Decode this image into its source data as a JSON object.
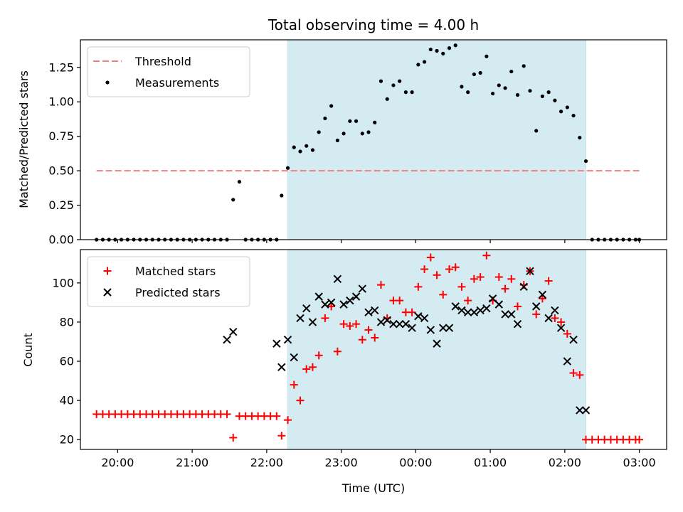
{
  "chart_data": [
    {
      "type": "scatter",
      "title": "Total observing time = 4.00 h",
      "xlabel": "",
      "ylabel": "Matched/Predicted stars",
      "ylim": [
        0,
        1.45
      ],
      "yticks": [
        "0.00",
        "0.25",
        "0.50",
        "0.75",
        "1.00",
        "1.25"
      ],
      "xlim": [
        "19:30",
        "03:22"
      ],
      "xticks": [
        "20:00",
        "21:00",
        "22:00",
        "23:00",
        "00:00",
        "01:00",
        "02:00",
        "03:00"
      ],
      "grid": false,
      "legend_position": "top-left",
      "observing_window": {
        "start": "22:17",
        "end": "02:17"
      },
      "observing_window_color": "#add8e6",
      "threshold": {
        "name": "Threshold",
        "value": 0.5,
        "x_start": "19:43",
        "x_end": "03:00",
        "color": "#f08080",
        "style": "dashed"
      },
      "series": [
        {
          "name": "Measurements",
          "marker": "dot",
          "color": "#000000",
          "x": [
            "19:43",
            "19:48",
            "19:53",
            "19:58",
            "20:03",
            "20:08",
            "20:13",
            "20:18",
            "20:23",
            "20:28",
            "20:33",
            "20:38",
            "20:43",
            "20:48",
            "20:53",
            "20:58",
            "21:03",
            "21:08",
            "21:13",
            "21:18",
            "21:23",
            "21:28",
            "21:33",
            "21:38",
            "21:43",
            "21:48",
            "21:53",
            "21:58",
            "22:03",
            "22:08",
            "22:12",
            "22:17",
            "22:22",
            "22:27",
            "22:32",
            "22:37",
            "22:42",
            "22:47",
            "22:52",
            "22:57",
            "23:02",
            "23:07",
            "23:12",
            "23:17",
            "23:22",
            "23:27",
            "23:32",
            "23:37",
            "23:42",
            "23:47",
            "23:52",
            "23:57",
            "00:02",
            "00:07",
            "00:12",
            "00:17",
            "00:22",
            "00:27",
            "00:32",
            "00:37",
            "00:42",
            "00:47",
            "00:52",
            "00:57",
            "01:02",
            "01:07",
            "01:12",
            "01:17",
            "01:22",
            "01:27",
            "01:32",
            "01:37",
            "01:42",
            "01:47",
            "01:52",
            "01:57",
            "02:02",
            "02:07",
            "02:12",
            "02:17",
            "02:22",
            "02:27",
            "02:32",
            "02:37",
            "02:42",
            "02:47",
            "02:52",
            "02:57",
            "03:00"
          ],
          "values": [
            0,
            0,
            0,
            0,
            0,
            0,
            0,
            0,
            0,
            0,
            0,
            0,
            0,
            0,
            0,
            0,
            0,
            0,
            0,
            0,
            0,
            0,
            0.29,
            0.42,
            0,
            0,
            0,
            0,
            0,
            0,
            0.32,
            0.52,
            0.67,
            0.64,
            0.68,
            0.65,
            0.78,
            0.88,
            0.97,
            0.72,
            0.77,
            0.86,
            0.86,
            0.77,
            0.78,
            0.85,
            1.15,
            1.02,
            1.12,
            1.15,
            1.07,
            1.07,
            1.27,
            1.29,
            1.38,
            1.37,
            1.35,
            1.39,
            1.41,
            1.11,
            1.07,
            1.2,
            1.21,
            1.33,
            1.06,
            1.12,
            1.1,
            1.22,
            1.05,
            1.26,
            1.08,
            0.79,
            1.04,
            1.07,
            1.01,
            0.93,
            0.96,
            0.9,
            0.74,
            0.57,
            0,
            0,
            0,
            0,
            0,
            0,
            0,
            0,
            0
          ]
        }
      ]
    },
    {
      "type": "scatter",
      "title": "",
      "xlabel": "Time (UTC)",
      "ylabel": "Count",
      "ylim": [
        15,
        117
      ],
      "yticks": [
        "20",
        "40",
        "60",
        "80",
        "100"
      ],
      "xlim": [
        "19:30",
        "03:22"
      ],
      "xticks": [
        "20:00",
        "21:00",
        "22:00",
        "23:00",
        "00:00",
        "01:00",
        "02:00",
        "03:00"
      ],
      "grid": false,
      "legend_position": "top-left",
      "observing_window": {
        "start": "22:17",
        "end": "02:17"
      },
      "observing_window_color": "#add8e6",
      "series": [
        {
          "name": "Matched stars",
          "marker": "plus",
          "color": "#ff0000",
          "x": [
            "19:43",
            "19:48",
            "19:53",
            "19:58",
            "20:03",
            "20:08",
            "20:13",
            "20:18",
            "20:23",
            "20:28",
            "20:33",
            "20:38",
            "20:43",
            "20:48",
            "20:53",
            "20:58",
            "21:03",
            "21:08",
            "21:13",
            "21:18",
            "21:23",
            "21:28",
            "21:33",
            "21:38",
            "21:43",
            "21:48",
            "21:53",
            "21:58",
            "22:03",
            "22:08",
            "22:12",
            "22:17",
            "22:22",
            "22:27",
            "22:32",
            "22:37",
            "22:42",
            "22:47",
            "22:52",
            "22:57",
            "23:02",
            "23:07",
            "23:12",
            "23:17",
            "23:22",
            "23:27",
            "23:32",
            "23:37",
            "23:42",
            "23:47",
            "23:52",
            "23:57",
            "00:02",
            "00:07",
            "00:12",
            "00:17",
            "00:22",
            "00:27",
            "00:32",
            "00:37",
            "00:42",
            "00:47",
            "00:52",
            "00:57",
            "01:02",
            "01:07",
            "01:12",
            "01:17",
            "01:22",
            "01:27",
            "01:32",
            "01:37",
            "01:42",
            "01:47",
            "01:52",
            "01:57",
            "02:02",
            "02:07",
            "02:12",
            "02:17",
            "02:22",
            "02:27",
            "02:32",
            "02:37",
            "02:42",
            "02:47",
            "02:52",
            "02:57",
            "03:00"
          ],
          "values": [
            33,
            33,
            33,
            33,
            33,
            33,
            33,
            33,
            33,
            33,
            33,
            33,
            33,
            33,
            33,
            33,
            33,
            33,
            33,
            33,
            33,
            33,
            21,
            32,
            32,
            32,
            32,
            32,
            32,
            32,
            22,
            30,
            48,
            40,
            56,
            57,
            63,
            82,
            88,
            65,
            79,
            78,
            79,
            71,
            76,
            72,
            99,
            82,
            91,
            91,
            85,
            85,
            98,
            107,
            113,
            104,
            94,
            107,
            108,
            98,
            91,
            102,
            103,
            114,
            91,
            103,
            97,
            102,
            88,
            99,
            106,
            84,
            92,
            101,
            82,
            80,
            74,
            54,
            53,
            20,
            20,
            20,
            20,
            20,
            20,
            20,
            20,
            20,
            20
          ]
        },
        {
          "name": "Predicted stars",
          "marker": "x",
          "color": "#000000",
          "x": [
            "21:28",
            "21:33",
            "22:08",
            "22:12",
            "22:17",
            "22:22",
            "22:27",
            "22:32",
            "22:37",
            "22:42",
            "22:47",
            "22:52",
            "22:57",
            "23:02",
            "23:07",
            "23:12",
            "23:17",
            "23:22",
            "23:27",
            "23:32",
            "23:37",
            "23:42",
            "23:47",
            "23:52",
            "23:57",
            "00:02",
            "00:07",
            "00:12",
            "00:17",
            "00:22",
            "00:27",
            "00:32",
            "00:37",
            "00:42",
            "00:47",
            "00:52",
            "00:57",
            "01:02",
            "01:07",
            "01:12",
            "01:17",
            "01:22",
            "01:27",
            "01:32",
            "01:37",
            "01:42",
            "01:47",
            "01:52",
            "01:57",
            "02:02",
            "02:07",
            "02:12",
            "02:17"
          ],
          "values": [
            71,
            75,
            69,
            57,
            71,
            62,
            82,
            87,
            80,
            93,
            89,
            90,
            102,
            89,
            91,
            93,
            97,
            85,
            86,
            80,
            81,
            79,
            79,
            79,
            77,
            83,
            82,
            76,
            69,
            77,
            77,
            88,
            86,
            85,
            85,
            86,
            87,
            92,
            89,
            84,
            84,
            79,
            98,
            106,
            88,
            94,
            82,
            86,
            77,
            60,
            71,
            35,
            35
          ]
        }
      ]
    }
  ]
}
